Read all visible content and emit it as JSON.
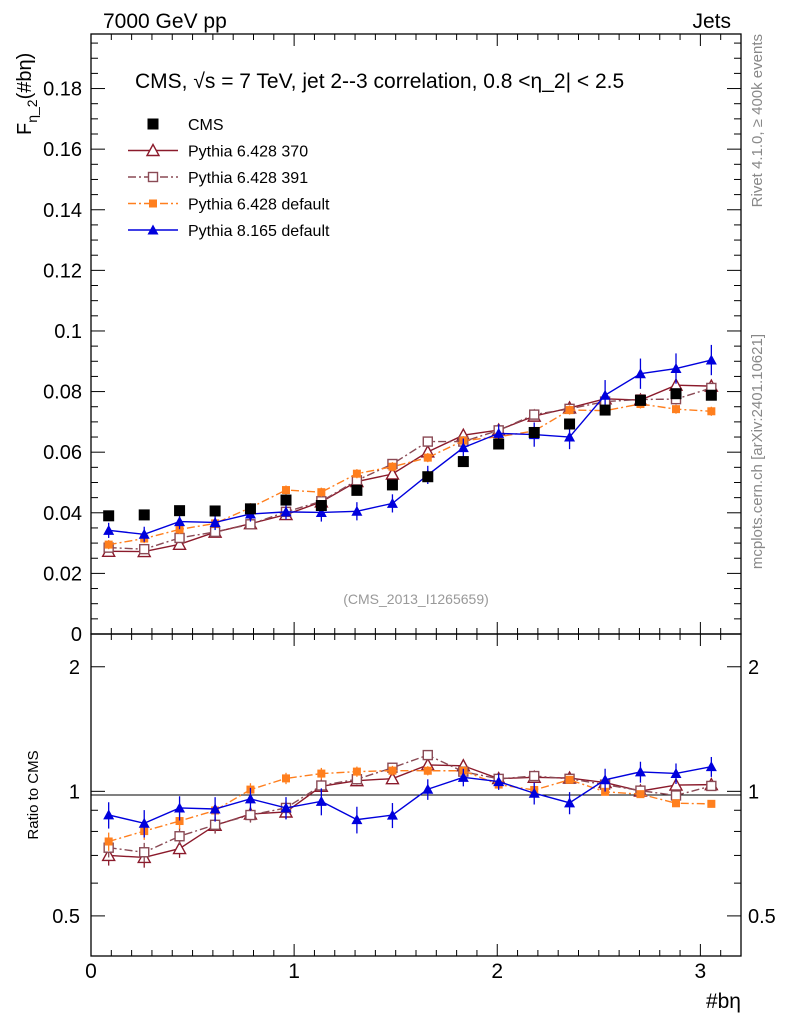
{
  "header": {
    "left": "7000 GeV pp",
    "right": "Jets"
  },
  "side_labels": {
    "rivet": "Rivet 4.1.0, ≥ 400k events",
    "mcplots": "mcplots.cern.ch [arXiv:2401.10621]"
  },
  "chart_data": {
    "type": "scatter",
    "title": "CMS, √s = 7 TeV, jet 2--3 correlation, 0.8 <η_2| < 2.5",
    "watermark": "(CMS_2013_I1265659)",
    "xlabel": "#bη",
    "ylabel_main": "F",
    "ylabel_sub": "η_2",
    "ylabel_tail": "(#bη)",
    "ylabel_ratio": "Ratio to CMS",
    "xlim": [
      0,
      3.2
    ],
    "ylim_main": [
      0,
      0.198
    ],
    "ylim_ratio": [
      0.4,
      2.4
    ],
    "x_ticks": [
      "0",
      "1",
      "2",
      "3"
    ],
    "y_ticks_main": [
      "0",
      "0.02",
      "0.04",
      "0.06",
      "0.08",
      "0.1",
      "0.12",
      "0.14",
      "0.16",
      "0.18"
    ],
    "y_ticks_ratio": [
      "0.5",
      "1",
      "2"
    ],
    "x": [
      0.087,
      0.262,
      0.436,
      0.611,
      0.785,
      0.96,
      1.134,
      1.309,
      1.484,
      1.658,
      1.833,
      2.007,
      2.182,
      2.356,
      2.531,
      2.705,
      2.88,
      3.054
    ],
    "series": [
      {
        "name": "CMS",
        "color": "#000000",
        "marker": "square-filled",
        "line": "none",
        "values": [
          0.039,
          0.0393,
          0.0407,
          0.0406,
          0.0413,
          0.0442,
          0.0424,
          0.0474,
          0.0492,
          0.0519,
          0.0569,
          0.0627,
          0.0665,
          0.0693,
          0.0739,
          0.0771,
          0.0793,
          0.0788
        ],
        "errors": [
          0.001,
          0.001,
          0.001,
          0.001,
          0.001,
          0.001,
          0.001,
          0.001,
          0.001,
          0.001,
          0.001,
          0.001,
          0.001,
          0.001,
          0.001,
          0.001,
          0.001,
          0.001
        ]
      },
      {
        "name": "Pythia 6.428 370",
        "color": "#8b1a2b",
        "marker": "triangle-open",
        "line": "solid",
        "values": [
          0.0273,
          0.0272,
          0.0296,
          0.0336,
          0.0364,
          0.0394,
          0.0436,
          0.0503,
          0.0528,
          0.0601,
          0.0656,
          0.0673,
          0.0719,
          0.0746,
          0.0776,
          0.0772,
          0.0821,
          0.0818
        ],
        "errors": [
          0.0015,
          0.0015,
          0.0015,
          0.0015,
          0.0015,
          0.0015,
          0.0015,
          0.0015,
          0.0015,
          0.0015,
          0.0015,
          0.0015,
          0.0015,
          0.0015,
          0.0015,
          0.0015,
          0.0015,
          0.0015
        ]
      },
      {
        "name": "Pythia 6.428 391",
        "color": "#8a4a55",
        "marker": "square-open",
        "line": "dashdot",
        "values": [
          0.0285,
          0.028,
          0.0317,
          0.0337,
          0.0362,
          0.0403,
          0.0438,
          0.0507,
          0.0561,
          0.0635,
          0.0635,
          0.0672,
          0.0724,
          0.0743,
          0.0767,
          0.0774,
          0.0775,
          0.0812
        ],
        "errors": [
          0.0015,
          0.0015,
          0.0015,
          0.0015,
          0.0015,
          0.0015,
          0.0015,
          0.0015,
          0.0015,
          0.0015,
          0.0015,
          0.0015,
          0.0015,
          0.0015,
          0.0015,
          0.0015,
          0.0015,
          0.0015
        ]
      },
      {
        "name": "Pythia 6.428 default",
        "color": "#ff7f1e",
        "marker": "square-filled-small",
        "line": "dashdot",
        "values": [
          0.0295,
          0.0315,
          0.0345,
          0.0365,
          0.0417,
          0.0475,
          0.0468,
          0.0529,
          0.0552,
          0.0582,
          0.0638,
          0.0651,
          0.067,
          0.0739,
          0.0737,
          0.0759,
          0.0742,
          0.0735
        ],
        "errors": [
          0.0015,
          0.0015,
          0.0015,
          0.0015,
          0.0015,
          0.0015,
          0.0015,
          0.0015,
          0.0015,
          0.0015,
          0.0015,
          0.0015,
          0.0015,
          0.0015,
          0.0015,
          0.0015,
          0.0015,
          0.0015
        ]
      },
      {
        "name": "Pythia 8.165 default",
        "color": "#0000dd",
        "marker": "triangle-filled",
        "line": "solid",
        "values": [
          0.0342,
          0.0329,
          0.0371,
          0.0368,
          0.0396,
          0.0403,
          0.0401,
          0.0405,
          0.0431,
          0.0525,
          0.0615,
          0.0662,
          0.0658,
          0.065,
          0.0788,
          0.0859,
          0.0876,
          0.0904
        ],
        "errors": [
          0.0025,
          0.0025,
          0.0025,
          0.0025,
          0.0025,
          0.0025,
          0.003,
          0.003,
          0.003,
          0.003,
          0.003,
          0.003,
          0.004,
          0.004,
          0.005,
          0.005,
          0.005,
          0.005
        ]
      }
    ]
  }
}
